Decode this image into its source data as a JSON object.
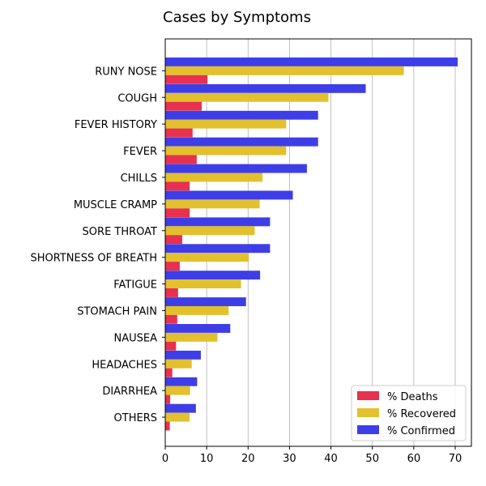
{
  "chart_data": {
    "type": "bar",
    "orientation": "horizontal",
    "title": "Cases by Symptoms",
    "xlabel": "",
    "ylabel": "",
    "xlim": [
      0,
      73
    ],
    "xticks": [
      0,
      10,
      20,
      30,
      40,
      50,
      60,
      70
    ],
    "grid": "vertical",
    "legend_position": "bottom-right",
    "categories": [
      "RUNY NOSE",
      "COUGH",
      "FEVER HISTORY",
      "FEVER",
      "CHILLS",
      "MUSCLE CRAMP",
      "SORE THROAT",
      "SHORTNESS OF BREATH",
      "FATIGUE",
      "STOMACH PAIN",
      "NAUSEA",
      "HEADACHES",
      "DIARRHEA",
      "OTHERS"
    ],
    "series": [
      {
        "name": "% Deaths",
        "color": "#e8304f",
        "values": [
          10.2,
          8.8,
          6.6,
          7.6,
          5.9,
          5.9,
          4.1,
          3.5,
          3.1,
          2.9,
          2.6,
          1.7,
          1.2,
          1.1
        ]
      },
      {
        "name": "% Recovered",
        "color": "#e3c02d",
        "values": [
          57.6,
          39.4,
          29.2,
          29.2,
          23.5,
          22.8,
          21.6,
          20.2,
          18.3,
          15.3,
          12.6,
          6.4,
          6.0,
          5.9
        ]
      },
      {
        "name": "% Confirmed",
        "color": "#3e3ee8",
        "values": [
          70.6,
          48.4,
          36.9,
          36.9,
          34.2,
          30.8,
          25.3,
          25.3,
          22.9,
          19.5,
          15.7,
          8.6,
          7.7,
          7.4
        ]
      }
    ]
  }
}
